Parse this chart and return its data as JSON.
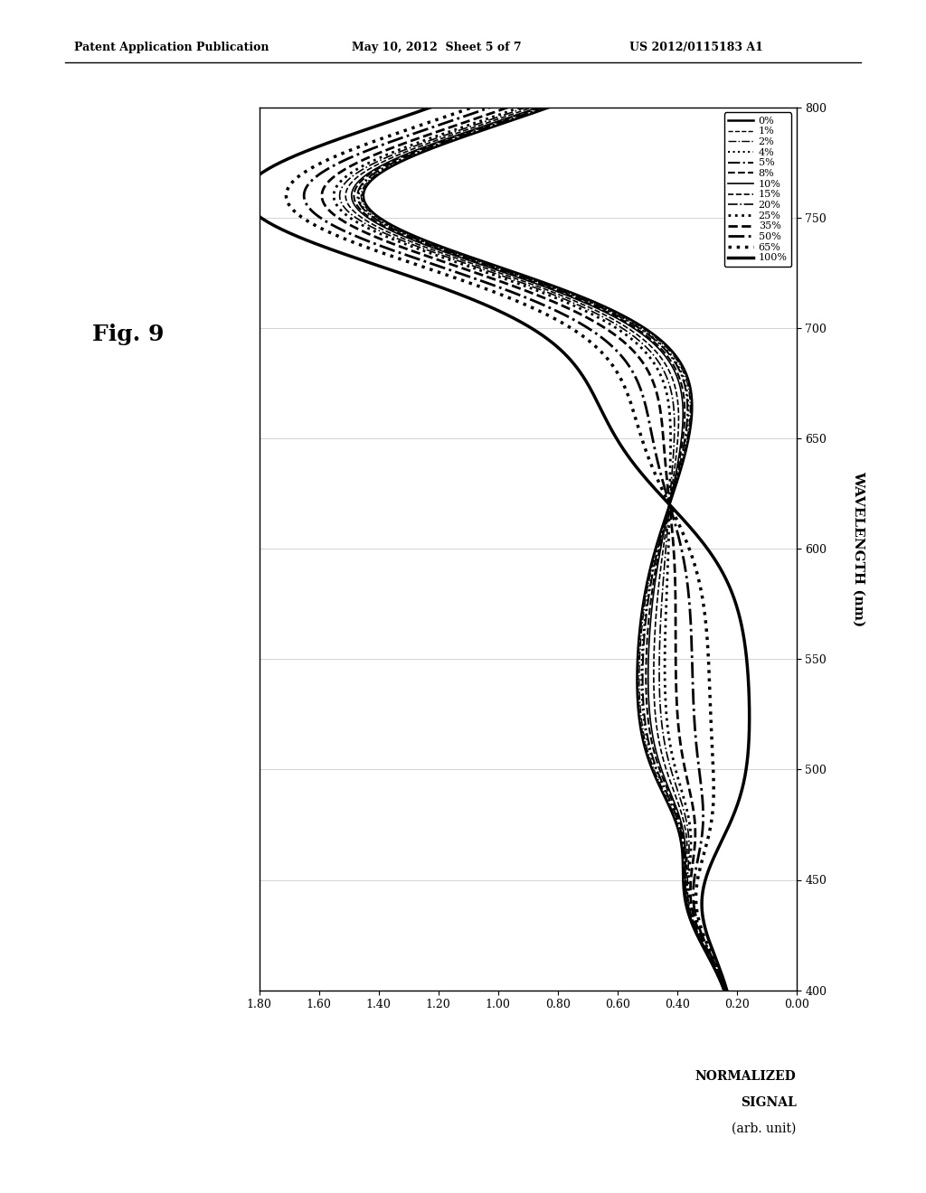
{
  "header_left": "Patent Application Publication",
  "header_center": "May 10, 2012  Sheet 5 of 7",
  "header_right": "US 2012/0115183 A1",
  "fig_label": "Fig. 9",
  "xlabel": "WAVELENGTH (nm)",
  "ylabel_line1": "NORMALIZED",
  "ylabel_line2": "SIGNAL",
  "ylabel_line3": "(arb. unit)",
  "xmin": 400,
  "xmax": 800,
  "ymin": 0.0,
  "ymax": 1.8,
  "yticks": [
    0.0,
    0.2,
    0.4,
    0.6,
    0.8,
    1.0,
    1.2,
    1.4,
    1.6,
    1.8
  ],
  "xticks": [
    400,
    450,
    500,
    550,
    600,
    650,
    700,
    750,
    800
  ],
  "concentrations": [
    "0%",
    "1%",
    "2%",
    "4%",
    "5%",
    "8%",
    "10%",
    "15%",
    "20%",
    "25%",
    "35%",
    "50%",
    "65%",
    "100%"
  ],
  "line_styles": [
    {
      "ls": "-",
      "lw": 1.5,
      "color": "black"
    },
    {
      "ls": "--",
      "lw": 1.0,
      "color": "black"
    },
    {
      "ls": "-.",
      "lw": 1.0,
      "color": "black"
    },
    {
      "ls": ":",
      "lw": 1.5,
      "color": "black"
    },
    {
      "ls": "-.",
      "lw": 1.5,
      "color": "black"
    },
    {
      "ls": "--",
      "lw": 1.5,
      "color": "black"
    },
    {
      "ls": "-",
      "lw": 1.2,
      "color": "black"
    },
    {
      "ls": "--",
      "lw": 1.2,
      "color": "black"
    },
    {
      "ls": "-.",
      "lw": 1.2,
      "color": "black"
    },
    {
      "ls": ":",
      "lw": 2.0,
      "color": "black"
    },
    {
      "ls": "--",
      "lw": 2.0,
      "color": "black"
    },
    {
      "ls": "-.",
      "lw": 2.0,
      "color": "black"
    },
    {
      "ls": ":",
      "lw": 2.5,
      "color": "black"
    },
    {
      "ls": "-",
      "lw": 2.5,
      "color": "black"
    }
  ]
}
